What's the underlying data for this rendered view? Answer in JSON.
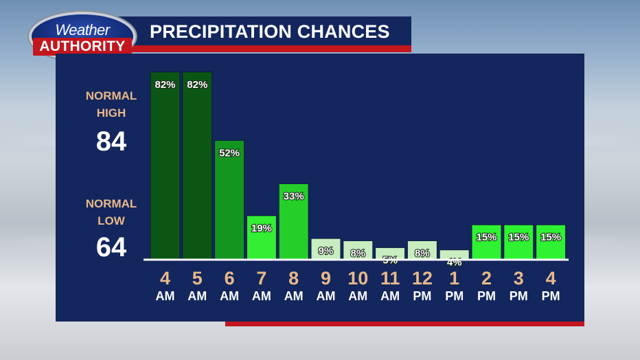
{
  "header": {
    "logo_top": "Weather",
    "logo_bottom": "AUTHORITY",
    "title": "PRECIPITATION CHANCES"
  },
  "sidebar": {
    "high_label_1": "NORMAL",
    "high_label_2": "HIGH",
    "high_value": "84",
    "low_label_1": "NORMAL",
    "low_label_2": "LOW",
    "low_value": "64"
  },
  "colors": {
    "panel": "#13265d",
    "accent_red": "#c3161e",
    "label_tan": "#e8b98a"
  },
  "chart_data": {
    "type": "bar",
    "title": "PRECIPITATION CHANCES",
    "unit": "%",
    "ylim": [
      0,
      100
    ],
    "grid": false,
    "categories": [
      {
        "hour": "4",
        "period": "AM"
      },
      {
        "hour": "5",
        "period": "AM"
      },
      {
        "hour": "6",
        "period": "AM"
      },
      {
        "hour": "7",
        "period": "AM"
      },
      {
        "hour": "8",
        "period": "AM"
      },
      {
        "hour": "9",
        "period": "AM"
      },
      {
        "hour": "10",
        "period": "AM"
      },
      {
        "hour": "11",
        "period": "AM"
      },
      {
        "hour": "12",
        "period": "PM"
      },
      {
        "hour": "1",
        "period": "PM"
      },
      {
        "hour": "2",
        "period": "PM"
      },
      {
        "hour": "3",
        "period": "PM"
      },
      {
        "hour": "4",
        "period": "PM"
      }
    ],
    "values": [
      82,
      82,
      52,
      19,
      33,
      9,
      8,
      5,
      8,
      4,
      15,
      15,
      15
    ],
    "labels": [
      "82%",
      "82%",
      "52%",
      "19%",
      "33%",
      "9%",
      "8%",
      "5%",
      "8%",
      "4%",
      "15%",
      "15%",
      "15%"
    ],
    "bar_colors": [
      "#0b5614",
      "#0b5614",
      "#13961f",
      "#33ee33",
      "#25cf2a",
      "#c8edc0",
      "#c8edc0",
      "#c8edc0",
      "#c8edc0",
      "#c8edc0",
      "#2ff232",
      "#2ff232",
      "#2ff232"
    ]
  }
}
